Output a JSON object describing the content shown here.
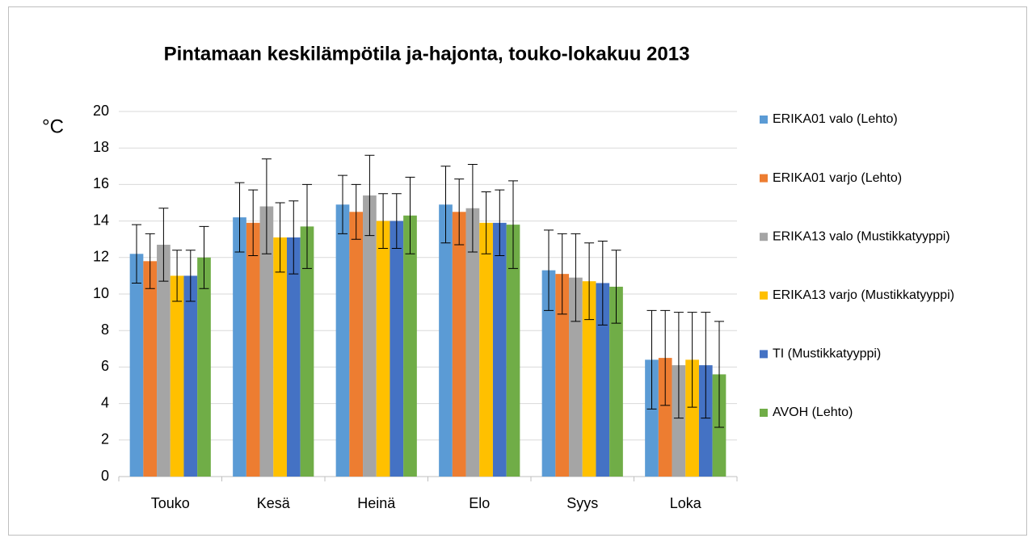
{
  "chart_data": {
    "type": "bar",
    "title": "Pintamaan keskilämpötila ja-hajonta, touko-lokakuu 2013",
    "y_label": "°C",
    "categories": [
      "Touko",
      "Kesä",
      "Heinä",
      "Elo",
      "Syys",
      "Loka"
    ],
    "series": [
      {
        "name": "ERIKA01 valo (Lehto)",
        "color": "#5b9bd5",
        "values": [
          12.2,
          14.2,
          14.9,
          14.9,
          11.3,
          6.4
        ],
        "errors": [
          1.6,
          1.9,
          1.6,
          2.1,
          2.2,
          2.7
        ]
      },
      {
        "name": "ERIKA01 varjo (Lehto)",
        "color": "#ed7d31",
        "values": [
          11.8,
          13.9,
          14.5,
          14.5,
          11.1,
          6.5
        ],
        "errors": [
          1.5,
          1.8,
          1.5,
          1.8,
          2.2,
          2.6
        ]
      },
      {
        "name": "ERIKA13 valo (Mustikkatyyppi)",
        "color": "#a5a5a5",
        "values": [
          12.7,
          14.8,
          15.4,
          14.7,
          10.9,
          6.1
        ],
        "errors": [
          2.0,
          2.6,
          2.2,
          2.4,
          2.4,
          2.9
        ]
      },
      {
        "name": "ERIKA13 varjo (Mustikkatyyppi)",
        "color": "#ffc000",
        "values": [
          11.0,
          13.1,
          14.0,
          13.9,
          10.7,
          6.4
        ],
        "errors": [
          1.4,
          1.9,
          1.5,
          1.7,
          2.1,
          2.6
        ]
      },
      {
        "name": "TI (Mustikkatyyppi)",
        "color": "#4472c4",
        "values": [
          11.0,
          13.1,
          14.0,
          13.9,
          10.6,
          6.1
        ],
        "errors": [
          1.4,
          2.0,
          1.5,
          1.8,
          2.3,
          2.9
        ]
      },
      {
        "name": "AVOH (Lehto)",
        "color": "#70ad47",
        "values": [
          12.0,
          13.7,
          14.3,
          13.8,
          10.4,
          5.6
        ],
        "errors": [
          1.7,
          2.3,
          2.1,
          2.4,
          2.0,
          2.9
        ]
      }
    ],
    "ylim": [
      0,
      20
    ],
    "yticks": [
      0,
      2,
      4,
      6,
      8,
      10,
      12,
      14,
      16,
      18,
      20
    ],
    "grid": true,
    "legend": "right"
  }
}
